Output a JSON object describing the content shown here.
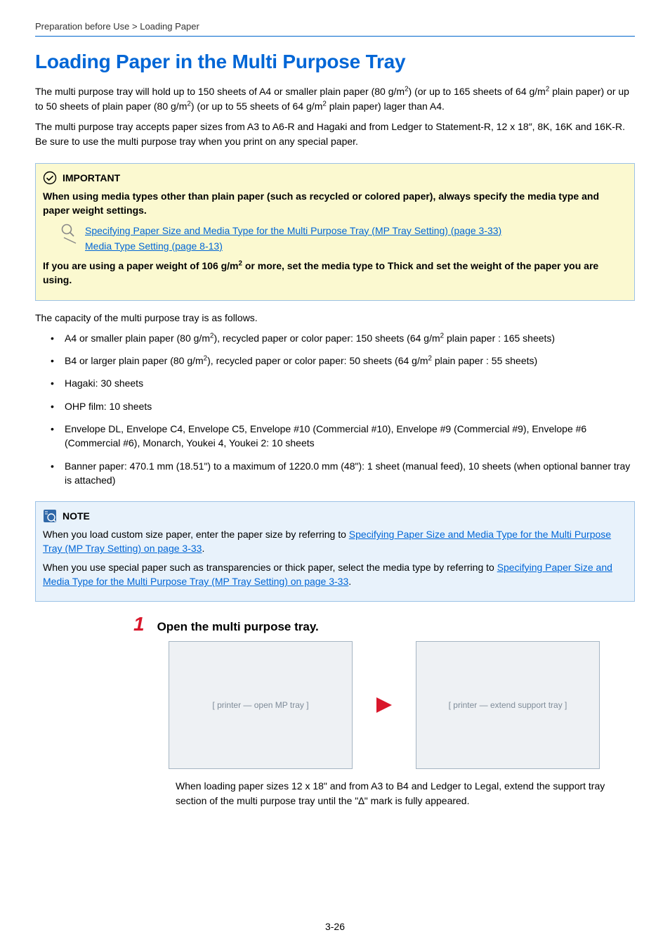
{
  "breadcrumb": "Preparation before Use > Loading Paper",
  "heading": "Loading Paper in the Multi Purpose Tray",
  "intro_html": "The multi purpose tray will hold up to 150 sheets of A4 or smaller plain paper (80 g/m<sup>2</sup>) (or up to 165 sheets of 64 g/m<sup>2</sup> plain paper) or up to 50 sheets of plain paper (80 g/m<sup>2</sup>) (or up to 55 sheets of 64 g/m<sup>2</sup> plain paper) lager than A4.",
  "intro2": "The multi purpose tray accepts paper sizes from A3 to A6-R and Hagaki and from Ledger to Statement-R, 12 x 18″, 8K, 16K and 16K-R. Be sure to use the multi purpose tray when you print on any special paper.",
  "important": {
    "label": "IMPORTANT",
    "line1": "When using media types other than plain paper (such as recycled or colored paper), always specify the media type and paper weight settings.",
    "link1": "Specifying Paper Size and Media Type for the Multi Purpose Tray (MP Tray Setting) (page 3-33)",
    "link2": "Media Type Setting (page 8-13)",
    "line2_html": "If you are using a paper weight of 106 g/m<sup>2</sup> or more, set the media type to Thick and set the weight of the paper you are using."
  },
  "capacity_intro": "The capacity of the multi purpose tray is as follows.",
  "capacity_items_html": [
    "A4 or smaller plain paper (80 g/m<sup>2</sup>), recycled paper or color paper: 150 sheets (64 g/m<sup>2</sup> plain paper : 165 sheets)",
    "B4 or larger plain paper (80 g/m<sup>2</sup>), recycled paper or color paper: 50 sheets (64 g/m<sup>2</sup> plain paper : 55 sheets)",
    "Hagaki: 30 sheets",
    "OHP film: 10 sheets",
    "Envelope DL, Envelope C4, Envelope C5, Envelope #10 (Commercial #10), Envelope #9 (Commercial #9), Envelope #6 (Commercial #6), Monarch, Youkei 4, Youkei 2: 10 sheets",
    "Banner paper: 470.1 mm (18.51\") to a maximum of 1220.0 mm (48\"): 1 sheet (manual feed), 10 sheets (when optional banner tray is attached)"
  ],
  "note": {
    "label": "NOTE",
    "p1_pre": "When you load custom size paper, enter the paper size by referring to ",
    "p1_link": "Specifying Paper Size and Media Type for the Multi Purpose Tray (MP Tray Setting) on page 3-33",
    "p1_post": ".",
    "p2_pre": "When you use special paper such as transparencies or thick paper, select the media type by referring to ",
    "p2_link": "Specifying Paper Size and Media Type for the Multi Purpose Tray (MP Tray Setting) on page 3-33",
    "p2_post": "."
  },
  "step": {
    "num": "1",
    "title": "Open the multi purpose tray.",
    "sub": "When loading paper sizes 12 x 18\" and from A3 to B4 and Ledger to Legal, extend the support tray section of the multi purpose tray until the \"∆\" mark is fully appeared.",
    "illus1_alt": "[ printer — open MP tray ]",
    "illus2_alt": "[ printer — extend support tray ]"
  },
  "pagenum": "3-26",
  "colors": {
    "heading_blue": "#0066d6",
    "step_red": "#d9172b",
    "important_bg": "#fbf9d0",
    "note_bg": "#e8f2fb",
    "border_blue": "#9cc2e6"
  }
}
